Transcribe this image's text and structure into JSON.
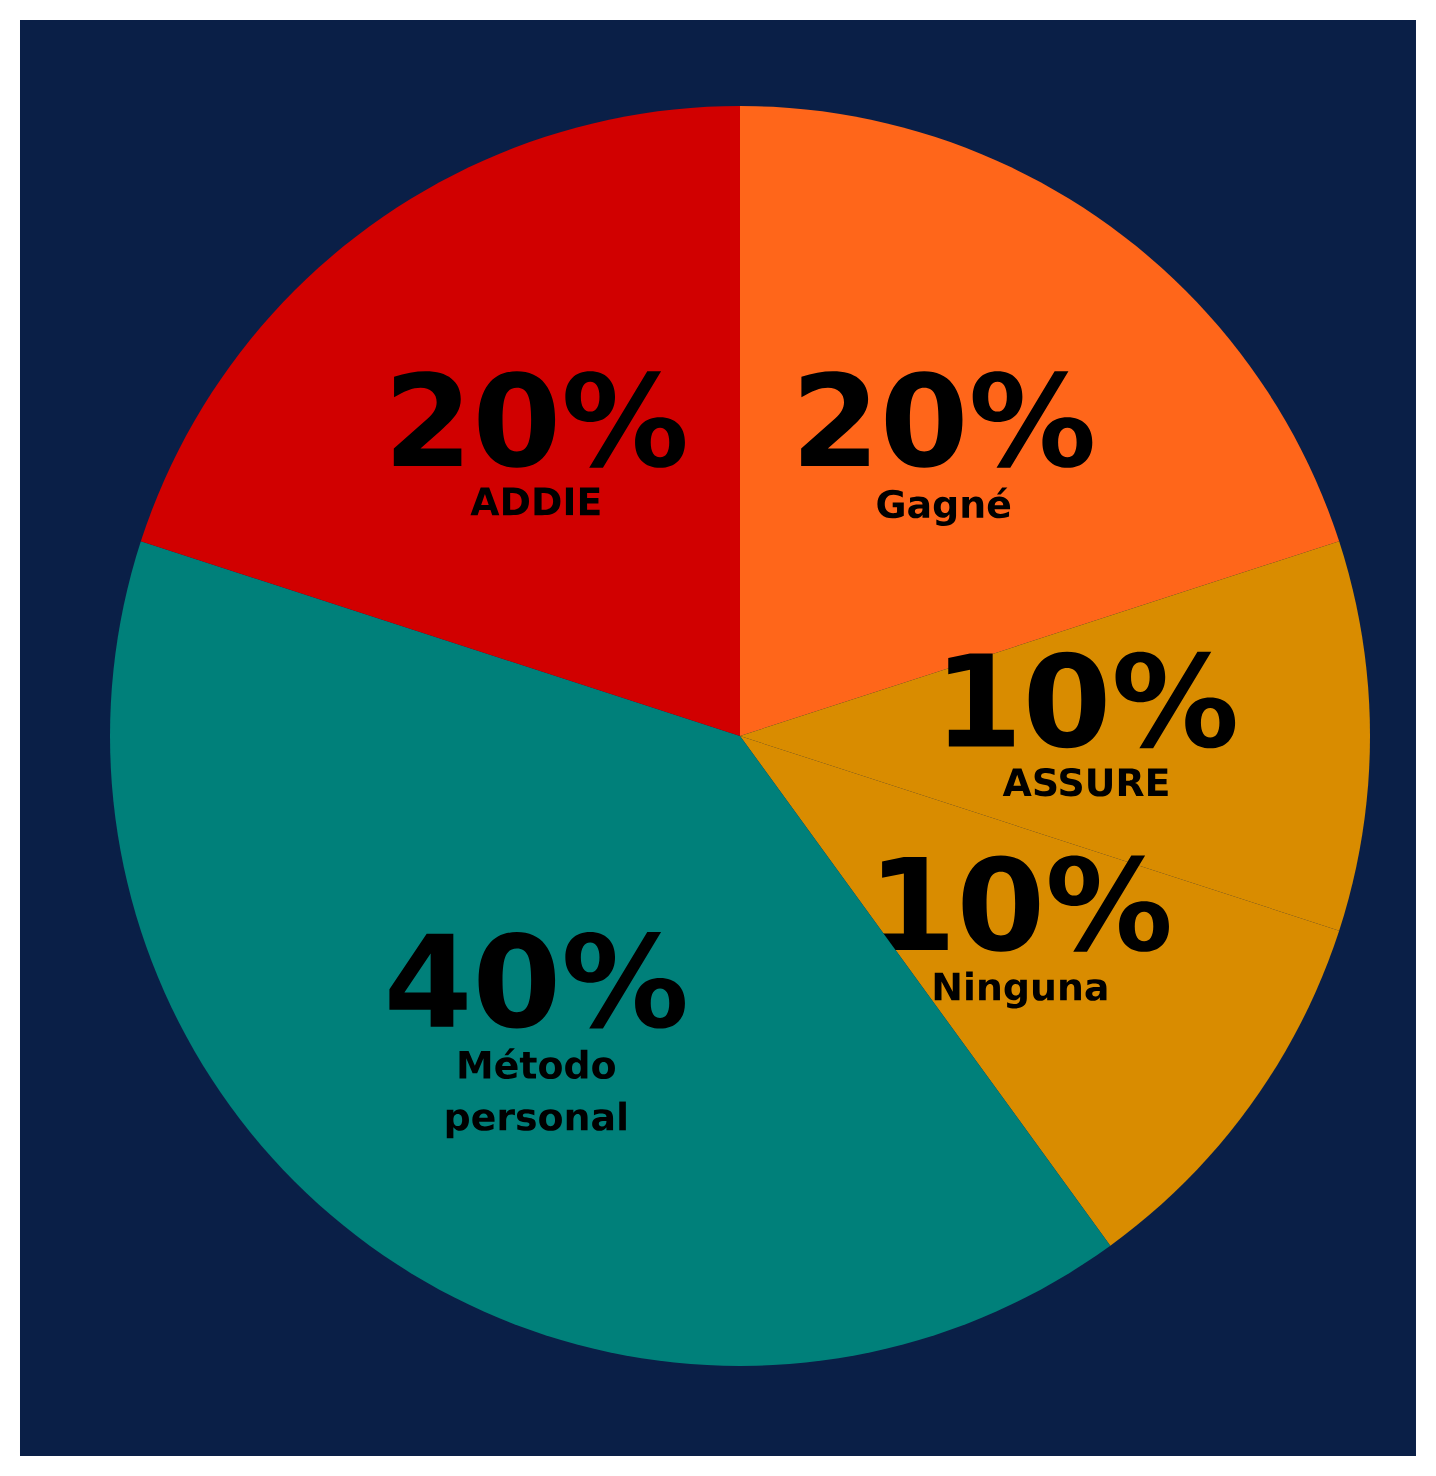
{
  "chart_data": {
    "type": "pie",
    "categories": [
      "Gagné",
      "ASSURE",
      "Ninguna",
      "Método personal",
      "ADDIE"
    ],
    "values": [
      20,
      10,
      10,
      40,
      20
    ],
    "value_labels": [
      "20%",
      "10%",
      "10%",
      "40%",
      "20%"
    ],
    "colors": [
      "#ff661a",
      "#d98c00",
      "#d98c00",
      "#00807a",
      "#d10000"
    ]
  }
}
